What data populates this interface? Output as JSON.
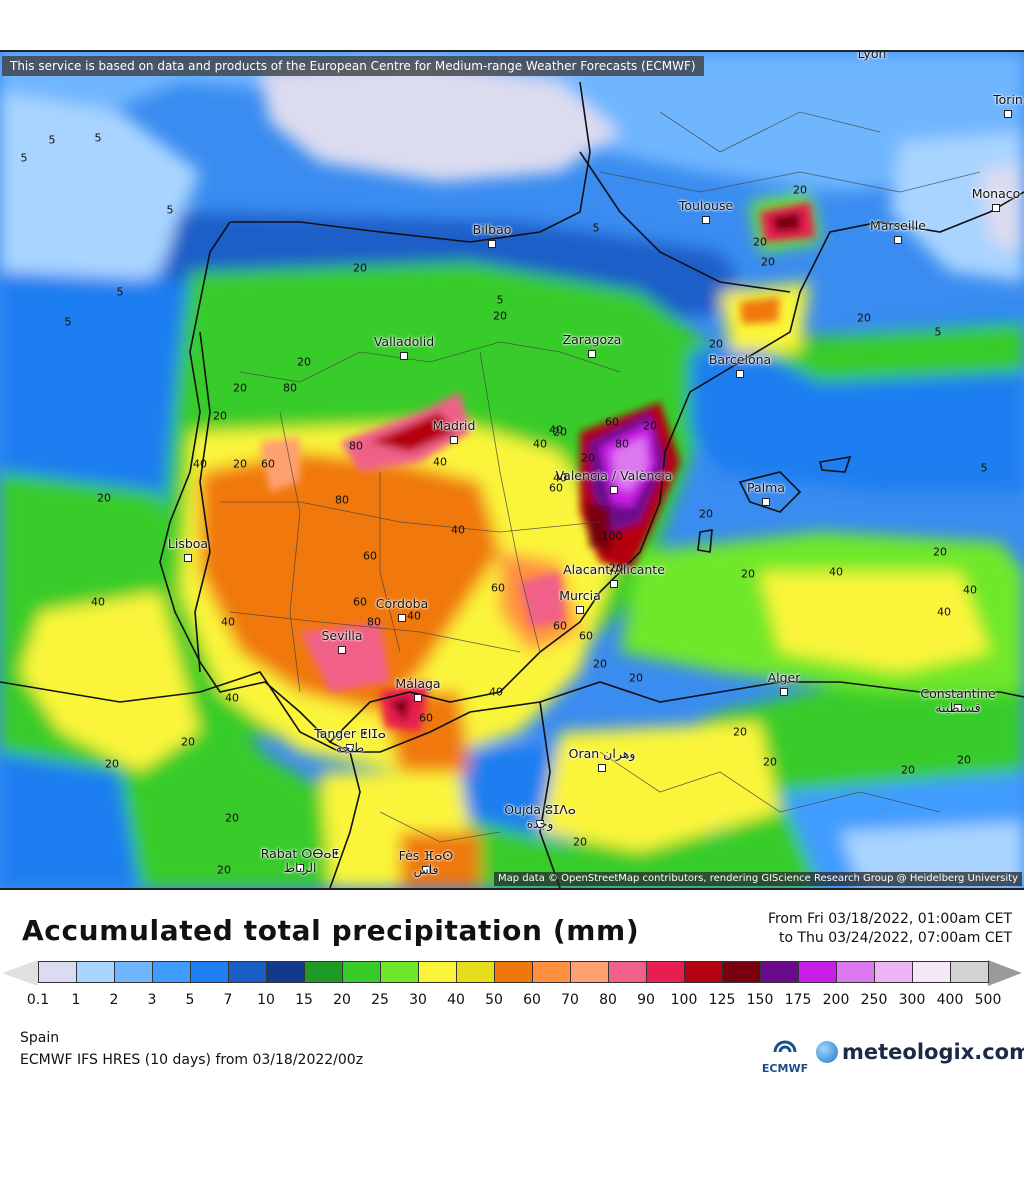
{
  "map": {
    "attribution": "This service is based on data and products of the European Centre for Medium-range Weather Forecasts (ECMWF)",
    "credit": "Map data © OpenStreetMap contributors, rendering GIScience Research Group @ Heidelberg University",
    "cities": [
      {
        "id": "lyon",
        "name": "Lyon"
      },
      {
        "id": "torino",
        "name": "Torin"
      },
      {
        "id": "monaco",
        "name": "Monaco"
      },
      {
        "id": "toulouse",
        "name": "Toulouse"
      },
      {
        "id": "marseille",
        "name": "Marseille"
      },
      {
        "id": "bilbao",
        "name": "Bilbao"
      },
      {
        "id": "valladolid",
        "name": "Valladolid"
      },
      {
        "id": "zaragoza",
        "name": "Zaragoza"
      },
      {
        "id": "barcelona",
        "name": "Barcelona"
      },
      {
        "id": "madrid",
        "name": "Madrid"
      },
      {
        "id": "valencia",
        "name": "Valencia / València"
      },
      {
        "id": "palma",
        "name": "Palma"
      },
      {
        "id": "lisboa",
        "name": "Lisboa"
      },
      {
        "id": "alicante",
        "name": "Alacant/Alicante"
      },
      {
        "id": "murcia",
        "name": "Murcia"
      },
      {
        "id": "cordoba",
        "name": "Córdoba"
      },
      {
        "id": "sevilla",
        "name": "Sevilla"
      },
      {
        "id": "malaga",
        "name": "Málaga"
      },
      {
        "id": "alger",
        "name": "Alger"
      },
      {
        "id": "constantine",
        "name": "Constantine"
      },
      {
        "id": "constantine-ar",
        "name": "قسنطينة"
      },
      {
        "id": "tanger",
        "name": "Tanger ⵟⵏⵊⴰ"
      },
      {
        "id": "tanger-ar",
        "name": "طنجة"
      },
      {
        "id": "oran",
        "name": "Oran وهران"
      },
      {
        "id": "oujda",
        "name": "Oujda ⵓⵊⴷⴰ"
      },
      {
        "id": "oujda-ar",
        "name": "وجدة"
      },
      {
        "id": "rabat",
        "name": "Rabat ⵔⴱⴰⵟ"
      },
      {
        "id": "rabat-ar",
        "name": "الرباط"
      },
      {
        "id": "fes",
        "name": "Fès ⴼⴰⵙ"
      },
      {
        "id": "fes-ar",
        "name": "فاس"
      }
    ],
    "contour_labels": [
      "5",
      "5",
      "5",
      "5",
      "5",
      "5",
      "5",
      "5",
      "5",
      "5",
      "20",
      "20",
      "20",
      "20",
      "20",
      "20",
      "20",
      "20",
      "20",
      "20",
      "20",
      "20",
      "20",
      "20",
      "20",
      "20",
      "20",
      "20",
      "20",
      "20",
      "20",
      "20",
      "20",
      "20",
      "40",
      "40",
      "40",
      "40",
      "40",
      "40",
      "40",
      "40",
      "40",
      "40",
      "40",
      "40",
      "40",
      "40",
      "60",
      "60",
      "60",
      "60",
      "60",
      "60",
      "60",
      "60",
      "60",
      "80",
      "80",
      "80",
      "80",
      "80",
      "100",
      "20",
      "20",
      "20",
      "20",
      "20",
      "20"
    ]
  },
  "title": "Accumulated total precipitation (mm)",
  "period": {
    "from": "From Fri 03/18/2022, 01:00am CET",
    "to": "to Thu 03/24/2022, 07:00am CET"
  },
  "legend": {
    "colors": [
      "#dcdcf0",
      "#a8d4ff",
      "#6fb6ff",
      "#3f9cff",
      "#1f7ef0",
      "#1c5ec8",
      "#113a8c",
      "#1e9a26",
      "#38cc2a",
      "#70e82a",
      "#faf53a",
      "#e6dc1c",
      "#f0780a",
      "#ff9040",
      "#ffa070",
      "#f06088",
      "#e81e50",
      "#b40010",
      "#780010",
      "#6a0a8c",
      "#c81ee6",
      "#dc78f0",
      "#ecb4f4",
      "#f6e6f8",
      "#d2d2d2"
    ],
    "ticks": [
      "0.1",
      "1",
      "2",
      "3",
      "5",
      "7",
      "10",
      "15",
      "20",
      "25",
      "30",
      "40",
      "50",
      "60",
      "70",
      "80",
      "90",
      "100",
      "125",
      "150",
      "175",
      "200",
      "250",
      "300",
      "400",
      "500"
    ]
  },
  "region": "Spain",
  "model": "ECMWF IFS HRES (10 days) from 03/18/2022/00z",
  "logos": {
    "ecmwf": "ECMWF",
    "meteologix": "meteologix.com"
  }
}
